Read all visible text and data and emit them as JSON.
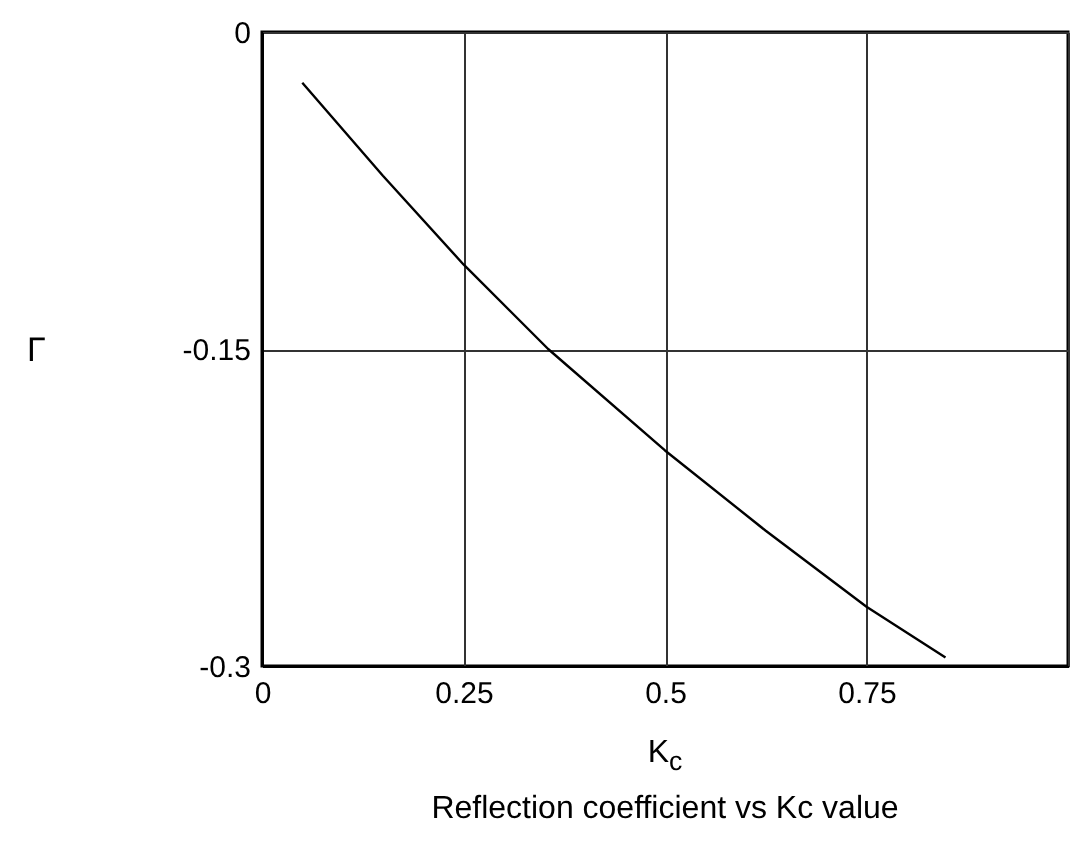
{
  "chart_data": {
    "type": "line",
    "xlabel": "K$_{c}$",
    "ylabel": "Γ",
    "annotations": [
      "Reflection coefficient vs Kc value"
    ],
    "x": [
      0.05,
      0.15,
      0.25,
      0.355,
      0.5,
      0.625,
      0.75,
      0.848
    ],
    "series": [
      {
        "color": "#000000",
        "values": [
          -0.024,
          -0.068,
          -0.11,
          -0.15,
          -0.198,
          -0.236,
          -0.272,
          -0.296
        ]
      }
    ],
    "xlim": [
      0,
      1
    ],
    "xticks": [
      0,
      0.25,
      0.5,
      0.75,
      {
        "value": 1,
        "label": null
      }
    ],
    "ylim": [
      -0.3,
      0
    ],
    "yticks": [
      -0.3,
      -0.15,
      0
    ],
    "grid": true,
    "marker": "none",
    "line_style": "solid"
  }
}
